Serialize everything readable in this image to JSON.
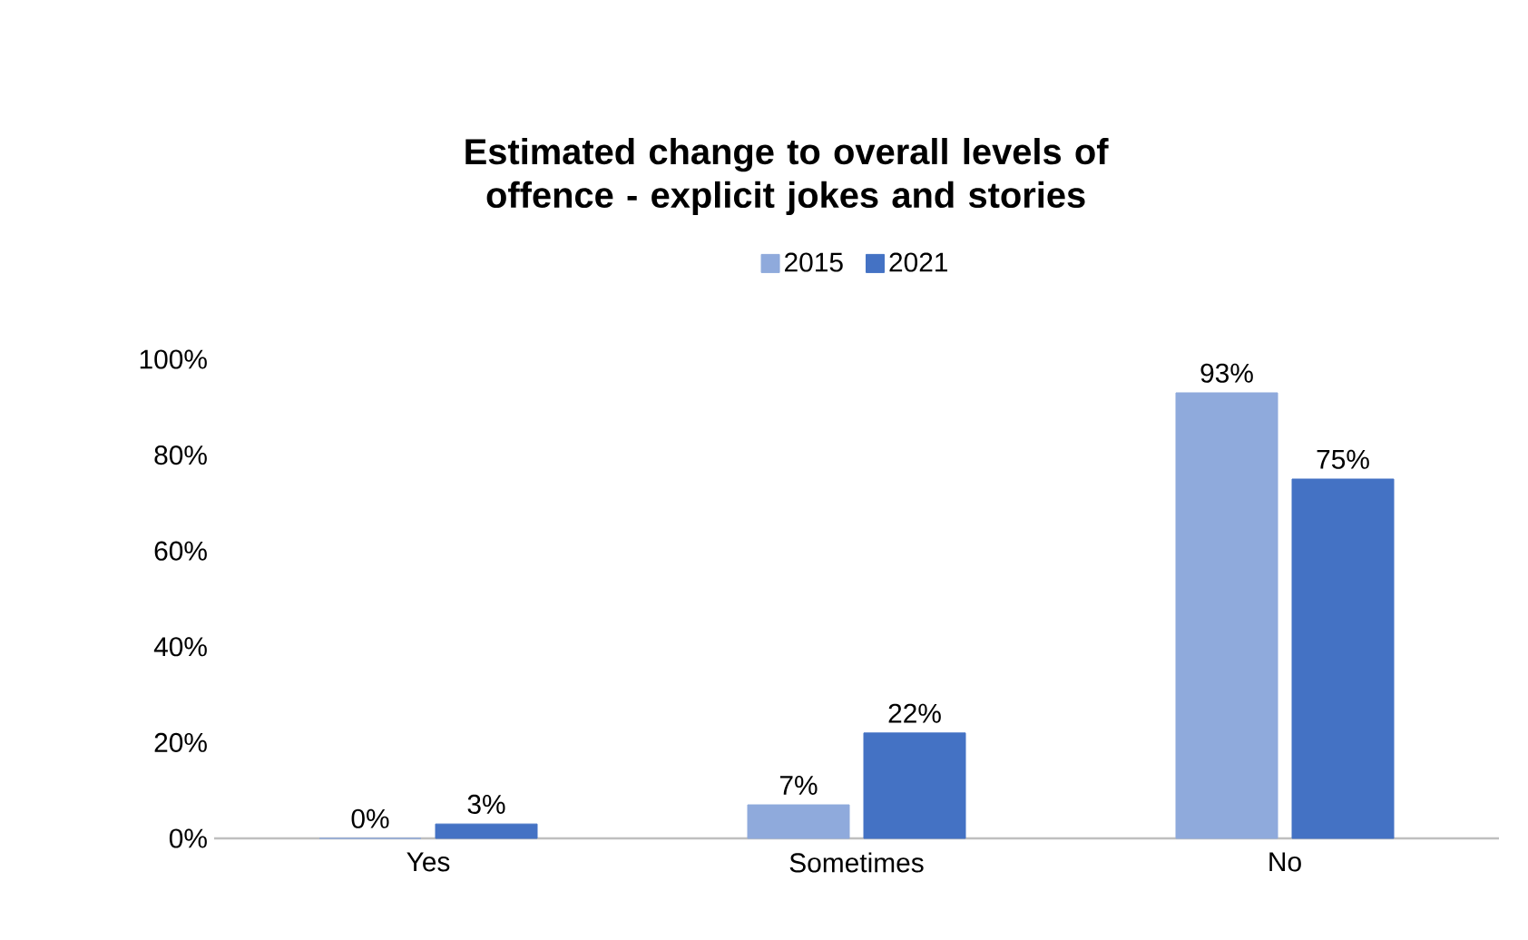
{
  "chart_data": {
    "type": "bar",
    "title": "Estimated change to overall levels of offence  - explicit jokes and stories",
    "categories": [
      "Yes",
      "Sometimes",
      "No"
    ],
    "series": [
      {
        "name": "2015",
        "color": "#8faadc",
        "values": [
          0,
          7,
          93
        ],
        "value_labels": [
          "0%",
          "7%",
          "93%"
        ]
      },
      {
        "name": "2021",
        "color": "#4472c4",
        "values": [
          3,
          22,
          75
        ],
        "value_labels": [
          "3%",
          "22%",
          "75%"
        ]
      }
    ],
    "ylim": [
      0,
      100
    ],
    "yticks": [
      {
        "value": 0,
        "label": "0%"
      },
      {
        "value": 20,
        "label": "20%"
      },
      {
        "value": 40,
        "label": "40%"
      },
      {
        "value": 60,
        "label": "60%"
      },
      {
        "value": 80,
        "label": "80%"
      },
      {
        "value": 100,
        "label": "100%"
      }
    ],
    "grid": false,
    "legend": "top"
  }
}
